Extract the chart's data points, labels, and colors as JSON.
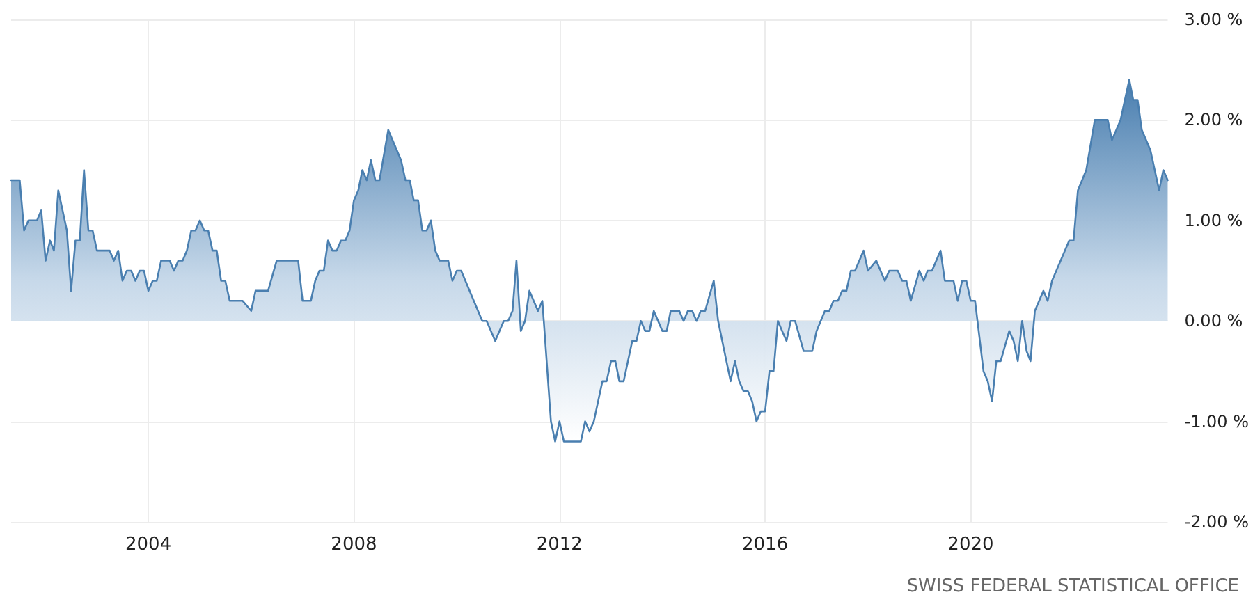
{
  "chart_data": {
    "type": "area",
    "color": "#4a7fb0",
    "x": [
      "2001-05",
      "2001-07",
      "2001-08",
      "2001-09",
      "2001-11",
      "2001-12",
      "2002-01",
      "2002-02",
      "2002-03",
      "2002-04",
      "2002-06",
      "2002-07",
      "2002-08",
      "2002-09",
      "2002-10",
      "2002-11",
      "2002-12",
      "2003-01",
      "2003-04",
      "2003-05",
      "2003-06",
      "2003-07",
      "2003-08",
      "2003-09",
      "2003-10",
      "2003-11",
      "2003-12",
      "2004-01",
      "2004-02",
      "2004-03",
      "2004-04",
      "2004-06",
      "2004-07",
      "2004-08",
      "2004-09",
      "2004-10",
      "2004-11",
      "2004-12",
      "2005-01",
      "2005-02",
      "2005-03",
      "2005-04",
      "2005-05",
      "2005-06",
      "2005-07",
      "2005-08",
      "2005-11",
      "2006-01",
      "2006-02",
      "2006-05",
      "2006-07",
      "2006-12",
      "2007-01",
      "2007-03",
      "2007-04",
      "2007-05",
      "2007-06",
      "2007-07",
      "2007-08",
      "2007-09",
      "2007-10",
      "2007-11",
      "2007-12",
      "2008-01",
      "2008-02",
      "2008-03",
      "2008-04",
      "2008-05",
      "2008-06",
      "2008-07",
      "2008-09",
      "2008-12",
      "2009-01",
      "2009-02",
      "2009-03",
      "2009-04",
      "2009-05",
      "2009-06",
      "2009-07",
      "2009-08",
      "2009-09",
      "2009-11",
      "2009-12",
      "2010-01",
      "2010-02",
      "2010-07",
      "2010-08",
      "2010-10",
      "2010-12",
      "2011-01",
      "2011-02",
      "2011-03",
      "2011-04",
      "2011-05",
      "2011-06",
      "2011-08",
      "2011-09",
      "2011-11",
      "2011-12",
      "2012-01",
      "2012-02",
      "2012-06",
      "2012-07",
      "2012-08",
      "2012-09",
      "2012-11",
      "2012-12",
      "2013-01",
      "2013-02",
      "2013-03",
      "2013-04",
      "2013-06",
      "2013-07",
      "2013-08",
      "2013-09",
      "2013-10",
      "2013-11",
      "2014-01",
      "2014-02",
      "2014-03",
      "2014-04",
      "2014-05",
      "2014-06",
      "2014-07",
      "2014-08",
      "2014-09",
      "2014-10",
      "2014-11",
      "2015-01",
      "2015-02",
      "2015-04",
      "2015-05",
      "2015-06",
      "2015-07",
      "2015-08",
      "2015-09",
      "2015-10",
      "2015-11",
      "2015-12",
      "2016-01",
      "2016-02",
      "2016-03",
      "2016-04",
      "2016-05",
      "2016-06",
      "2016-07",
      "2016-08",
      "2016-10",
      "2016-11",
      "2016-12",
      "2017-01",
      "2017-03",
      "2017-04",
      "2017-05",
      "2017-06",
      "2017-07",
      "2017-08",
      "2017-09",
      "2017-10",
      "2017-12",
      "2018-01",
      "2018-03",
      "2018-05",
      "2018-06",
      "2018-08",
      "2018-09",
      "2018-10",
      "2018-11",
      "2019-01",
      "2019-02",
      "2019-03",
      "2019-04",
      "2019-06",
      "2019-07",
      "2019-09",
      "2019-10",
      "2019-11",
      "2019-12",
      "2020-01",
      "2020-02",
      "2020-04",
      "2020-05",
      "2020-06",
      "2020-07",
      "2020-08",
      "2020-10",
      "2020-11",
      "2020-12",
      "2021-01",
      "2021-02",
      "2021-03",
      "2021-04",
      "2021-06",
      "2021-07",
      "2021-08",
      "2021-12",
      "2022-01",
      "2022-02",
      "2022-04",
      "2022-06",
      "2022-09",
      "2022-10",
      "2022-12",
      "2023-02",
      "2023-03",
      "2023-04",
      "2023-05",
      "2023-07",
      "2023-09",
      "2023-10",
      "2023-11"
    ],
    "values": [
      1.4,
      1.4,
      0.9,
      1.0,
      1.0,
      1.1,
      0.6,
      0.8,
      0.7,
      1.3,
      0.9,
      0.3,
      0.8,
      0.8,
      1.5,
      0.9,
      0.9,
      0.7,
      0.7,
      0.6,
      0.7,
      0.4,
      0.5,
      0.5,
      0.4,
      0.5,
      0.5,
      0.3,
      0.4,
      0.4,
      0.6,
      0.6,
      0.5,
      0.6,
      0.6,
      0.7,
      0.9,
      0.9,
      1.0,
      0.9,
      0.9,
      0.7,
      0.7,
      0.4,
      0.4,
      0.2,
      0.2,
      0.1,
      0.3,
      0.3,
      0.6,
      0.6,
      0.2,
      0.2,
      0.4,
      0.5,
      0.5,
      0.8,
      0.7,
      0.7,
      0.8,
      0.8,
      0.9,
      1.2,
      1.3,
      1.5,
      1.4,
      1.6,
      1.4,
      1.4,
      1.9,
      1.6,
      1.4,
      1.4,
      1.2,
      1.2,
      0.9,
      0.9,
      1.0,
      0.7,
      0.6,
      0.6,
      0.4,
      0.5,
      0.5,
      0.0,
      0.0,
      -0.2,
      0.0,
      0.0,
      0.1,
      0.6,
      -0.1,
      0.0,
      0.3,
      0.1,
      0.2,
      -1.0,
      -1.2,
      -1.0,
      -1.2,
      -1.2,
      -1.0,
      -1.1,
      -1.0,
      -0.6,
      -0.6,
      -0.4,
      -0.4,
      -0.6,
      -0.6,
      -0.2,
      -0.2,
      0.0,
      -0.1,
      -0.1,
      0.1,
      -0.1,
      -0.1,
      0.1,
      0.1,
      0.1,
      0.0,
      0.1,
      0.1,
      0.0,
      0.1,
      0.1,
      0.4,
      0.0,
      -0.4,
      -0.6,
      -0.4,
      -0.6,
      -0.7,
      -0.7,
      -0.8,
      -1.0,
      -0.9,
      -0.9,
      -0.5,
      -0.5,
      0.0,
      -0.1,
      -0.2,
      0.0,
      0.0,
      -0.3,
      -0.3,
      -0.3,
      -0.1,
      0.1,
      0.1,
      0.2,
      0.2,
      0.3,
      0.3,
      0.5,
      0.5,
      0.7,
      0.5,
      0.6,
      0.4,
      0.5,
      0.5,
      0.4,
      0.4,
      0.2,
      0.5,
      0.4,
      0.5,
      0.5,
      0.7,
      0.4,
      0.4,
      0.2,
      0.4,
      0.4,
      0.2,
      0.2,
      -0.5,
      -0.6,
      -0.8,
      -0.4,
      -0.4,
      -0.1,
      -0.2,
      -0.4,
      0.0,
      -0.3,
      -0.4,
      0.1,
      0.3,
      0.2,
      0.4,
      0.8,
      0.8,
      1.3,
      1.5,
      2.0,
      2.0,
      1.8,
      2.0,
      2.4,
      2.2,
      2.2,
      1.9,
      1.7,
      1.3,
      1.5,
      1.4
    ],
    "xlim": [
      "2001-05",
      "2023-11"
    ],
    "xticks": [
      "2004",
      "2008",
      "2012",
      "2016",
      "2020"
    ],
    "ylim": [
      -2,
      3
    ],
    "yticks": [
      {
        "value": 3,
        "label": "3.00 %"
      },
      {
        "value": 2,
        "label": "2.00 %"
      },
      {
        "value": 1,
        "label": "1.00 %"
      },
      {
        "value": 0,
        "label": "0.00 %"
      },
      {
        "value": -1,
        "label": "-1.00 %"
      },
      {
        "value": -2,
        "label": "-2.00 %"
      }
    ],
    "grid": true,
    "annotations": [
      "SWISS FEDERAL STATISTICAL OFFICE"
    ]
  }
}
